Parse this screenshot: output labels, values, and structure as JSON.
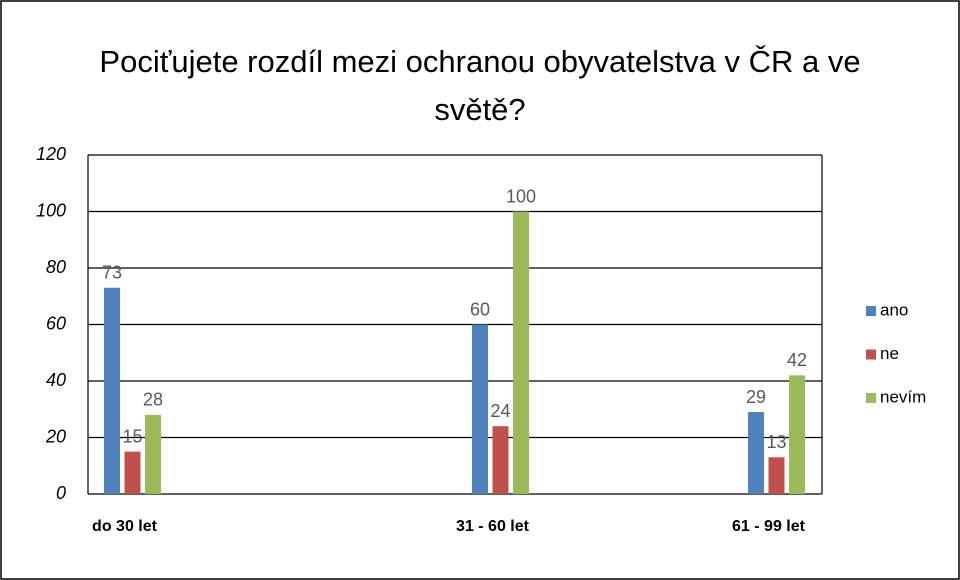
{
  "chart_data": {
    "type": "bar",
    "title": "Pociťujete rozdíl mezi ochranou obyvatelstva v ČR a ve světě?",
    "categories": [
      "do 30 let",
      "31 - 60 let",
      "61 - 99 let"
    ],
    "series": [
      {
        "name": "ano",
        "color": "#4f81bd",
        "values": [
          73,
          60,
          29
        ]
      },
      {
        "name": "ne",
        "color": "#c0504d",
        "values": [
          15,
          24,
          13
        ]
      },
      {
        "name": "nevím",
        "color": "#9bbb59",
        "values": [
          28,
          100,
          42
        ]
      }
    ],
    "ylim": [
      0,
      120
    ],
    "yticks": [
      0,
      20,
      40,
      60,
      80,
      100,
      120
    ],
    "grid": true,
    "legend": "right"
  }
}
